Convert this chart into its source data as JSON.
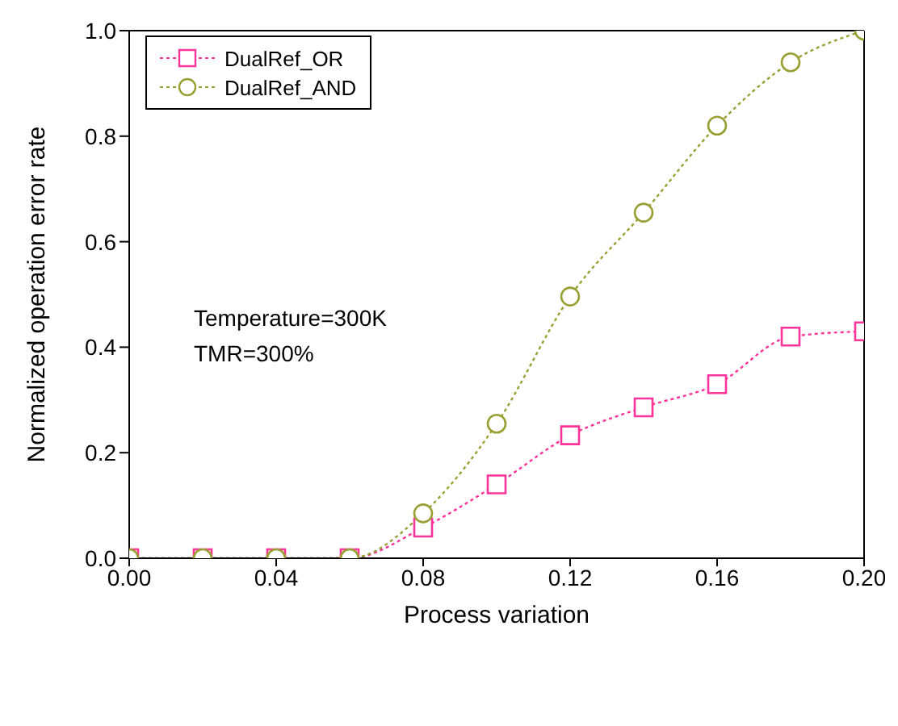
{
  "chart_data": {
    "type": "line",
    "xlabel": "Process variation",
    "ylabel": "Normalized operation error rate",
    "x": [
      0,
      0.02,
      0.04,
      0.06,
      0.08,
      0.1,
      0.12,
      0.14,
      0.16,
      0.18,
      0.2
    ],
    "series": [
      {
        "name": "DualRef_OR",
        "color": "#ff3399",
        "marker": "square",
        "values": [
          0,
          0,
          0,
          0,
          0.058,
          0.14,
          0.233,
          0.286,
          0.33,
          0.42,
          0.43
        ]
      },
      {
        "name": "DualRef_AND",
        "color": "#99a033",
        "marker": "circle",
        "values": [
          0,
          0,
          0,
          0,
          0.085,
          0.255,
          0.496,
          0.655,
          0.82,
          0.94,
          1.0
        ]
      }
    ],
    "xlim": [
      0,
      0.2
    ],
    "ylim": [
      0,
      1
    ],
    "xticks": [
      {
        "value": 0,
        "label": "0.00"
      },
      {
        "value": 0.04,
        "label": "0.04"
      },
      {
        "value": 0.08,
        "label": "0.08"
      },
      {
        "value": 0.12,
        "label": "0.12"
      },
      {
        "value": 0.16,
        "label": "0.16"
      },
      {
        "value": 0.2,
        "label": "0.20"
      }
    ],
    "yticks": [
      {
        "value": 0,
        "label": "0.0"
      },
      {
        "value": 0.2,
        "label": "0.2"
      },
      {
        "value": 0.4,
        "label": "0.4"
      },
      {
        "value": 0.6,
        "label": "0.6"
      },
      {
        "value": 0.8,
        "label": "0.8"
      },
      {
        "value": 1,
        "label": "1.0"
      }
    ],
    "annotations": [
      "Temperature=300K",
      "TMR=300%"
    ],
    "legend": "top left",
    "grid": false,
    "line_style": "dotted"
  }
}
